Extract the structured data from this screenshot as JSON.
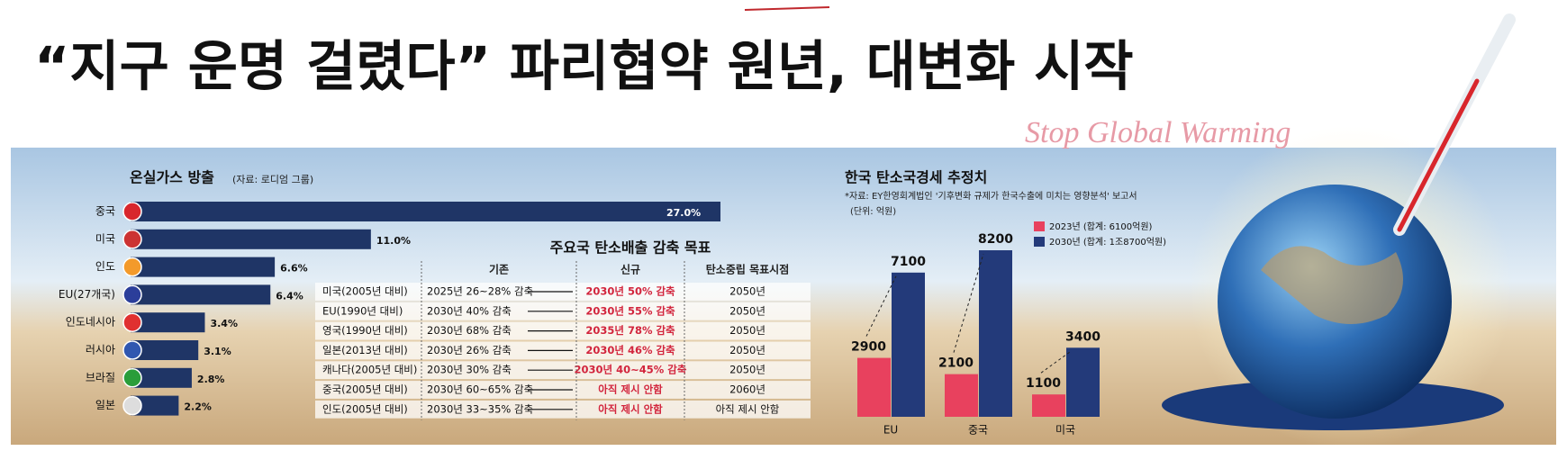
{
  "headline": "“지구 운명 걸렸다” 파리협약 원년, 대변화 시작",
  "decoration_text": "Stop Global Warming",
  "chart_data": [
    {
      "type": "bar",
      "orientation": "horizontal",
      "title": "온실가스 방출",
      "subtitle": "(자료: 로디엄 그룹)",
      "categories": [
        "중국",
        "미국",
        "인도",
        "EU(27개국)",
        "인도네시아",
        "러시아",
        "브라질",
        "일본"
      ],
      "values": [
        27.0,
        11.0,
        6.6,
        6.4,
        3.4,
        3.1,
        2.8,
        2.2
      ],
      "value_labels": [
        "27.0%",
        "11.0%",
        "6.6%",
        "6.4%",
        "3.4%",
        "3.1%",
        "2.8%",
        "2.2%"
      ],
      "color": "#1f3566"
    },
    {
      "type": "grouped-bar",
      "title": "한국 탄소국경세 추정치",
      "subtitle": "*자료: EY한영회계법인 '기후변화 규제가 한국수출에 미치는 영향분석' 보고서",
      "unit_note": "(단위: 억원)",
      "categories": [
        "EU",
        "중국",
        "미국"
      ],
      "series": [
        {
          "name": "2023년 (합계: 6100억원)",
          "color": "#e8415e",
          "values": [
            2900,
            2100,
            1100
          ]
        },
        {
          "name": "2030년 (합계: 1조8700억원)",
          "color": "#233a7a",
          "values": [
            7100,
            8200,
            3400
          ]
        }
      ]
    }
  ],
  "table": {
    "title": "주요국 탄소배출 감축 목표",
    "headers": [
      "기존",
      "신규",
      "탄소중립 목표시점"
    ],
    "rows": [
      [
        "미국(2005년 대비)",
        "2025년 26~28% 감축",
        "2030년 50% 감축",
        "2050년"
      ],
      [
        "EU(1990년 대비)",
        "2030년 40% 감축",
        "2030년 55% 감축",
        "2050년"
      ],
      [
        "영국(1990년 대비)",
        "2030년 68% 감축",
        "2035년 78% 감축",
        "2050년"
      ],
      [
        "일본(2013년 대비)",
        "2030년 26% 감축",
        "2030년 46% 감축",
        "2050년"
      ],
      [
        "캐나다(2005년 대비)",
        "2030년 30% 감축",
        "2030년 40~45% 감축",
        "2050년"
      ],
      [
        "중국(2005년 대비)",
        "2030년 60~65% 감축",
        "아직 제시 안함",
        "2060년"
      ],
      [
        "인도(2005년 대비)",
        "2030년 33~35% 감축",
        "아직 제시 안함",
        "아직 제시 안함"
      ]
    ]
  }
}
